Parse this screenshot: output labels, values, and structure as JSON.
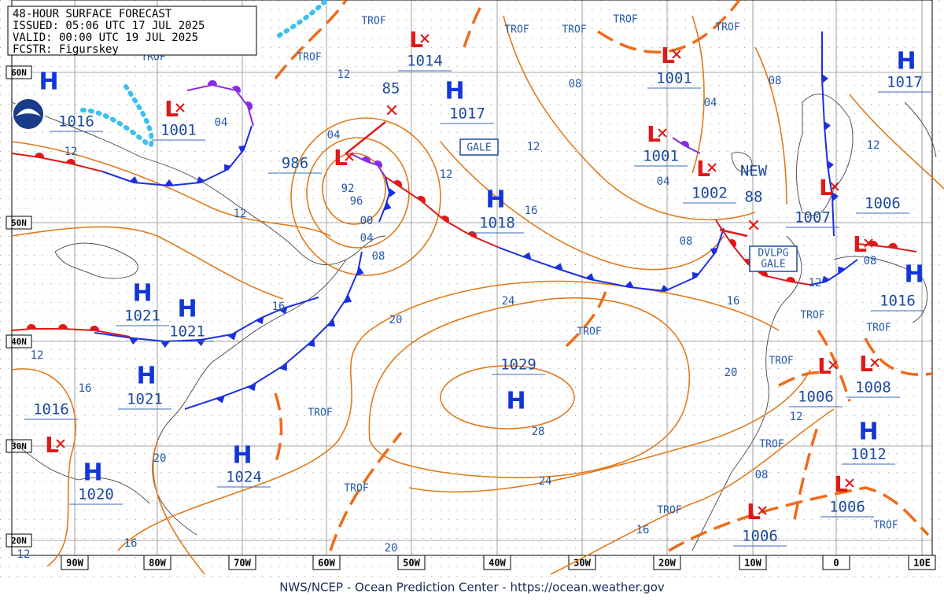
{
  "header": {
    "lines": [
      "48-HOUR SURFACE FORECAST",
      "ISSUED: 05:06 UTC 17 JUL 2025",
      "VALID: 00:00 UTC 19 JUL 2025",
      "FCSTR: Figurskey"
    ]
  },
  "latitudes": [
    "60N",
    "50N",
    "40N",
    "30N",
    "20N"
  ],
  "longitudes": [
    "90W",
    "80W",
    "70W",
    "60W",
    "50W",
    "40W",
    "30W",
    "20W",
    "10W",
    "0",
    "10E"
  ],
  "highs": [
    {
      "symbol": "H",
      "pressure": "1017"
    },
    {
      "symbol": "H",
      "pressure": "1016"
    },
    {
      "symbol": "H",
      "pressure": "1017"
    },
    {
      "symbol": "H",
      "pressure": "1018"
    },
    {
      "symbol": "H",
      "pressure": "1021"
    },
    {
      "symbol": "H",
      "pressure": "1021"
    },
    {
      "symbol": "H",
      "pressure": "1021"
    },
    {
      "symbol": "H",
      "pressure": "1029"
    },
    {
      "symbol": "H",
      "pressure": "1024"
    },
    {
      "symbol": "H",
      "pressure": "1020"
    },
    {
      "symbol": "H",
      "pressure": "1012"
    },
    {
      "symbol": "H",
      "pressure": "1016"
    }
  ],
  "lows": [
    {
      "symbol": "L",
      "pressure": "1014"
    },
    {
      "symbol": "L",
      "pressure": "1001"
    },
    {
      "symbol": "L",
      "pressure": "1001"
    },
    {
      "symbol": "L",
      "pressure": "1001"
    },
    {
      "symbol": "L",
      "pressure": "1002"
    },
    {
      "symbol": "L",
      "pressure": "986"
    },
    {
      "symbol": "L",
      "pressure": "1007"
    },
    {
      "symbol": "L",
      "pressure": "1006"
    },
    {
      "symbol": "L",
      "pressure": "1006"
    },
    {
      "symbol": "L",
      "pressure": "1008"
    },
    {
      "symbol": "L",
      "pressure": "1006"
    },
    {
      "symbol": "L",
      "pressure": "1006"
    },
    {
      "symbol": "L",
      "pressure": "1016"
    }
  ],
  "storm_labels": [
    "85",
    "88",
    "NEW"
  ],
  "warnings": [
    "GALE",
    "DVLPG",
    "GALE"
  ],
  "trough_labels": [
    "TROF",
    "TROF",
    "TROF",
    "TROF",
    "TROF",
    "TROF",
    "TROF",
    "TROF",
    "TROF",
    "TROF",
    "TROF",
    "TROF",
    "TROF",
    "TROF",
    "TROF",
    "TROF"
  ],
  "isobar_labels": [
    "12",
    "04",
    "12",
    "04",
    "12",
    "12",
    "08",
    "04",
    "08",
    "12",
    "04",
    "16",
    "92",
    "96",
    "00",
    "04",
    "08",
    "12",
    "08",
    "08",
    "12",
    "16",
    "24",
    "20",
    "16",
    "12",
    "16",
    "20",
    "28",
    "12",
    "24",
    "08",
    "20",
    "16",
    "16",
    "20",
    "12"
  ],
  "footer": "NWS/NCEP - Ocean Prediction Center - https://ocean.weather.gov"
}
